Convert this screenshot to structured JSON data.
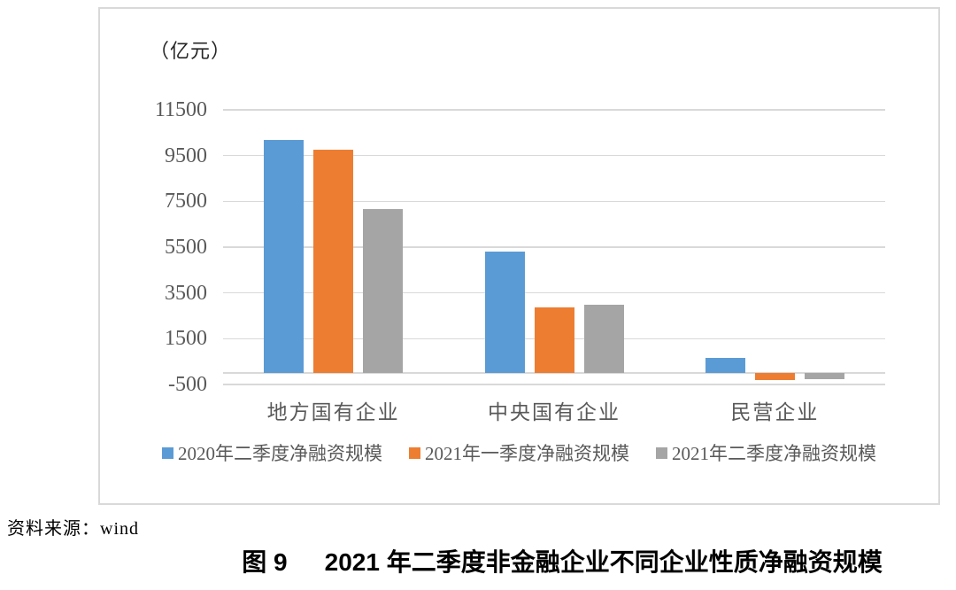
{
  "page": {
    "source_note": "资料来源：wind",
    "caption_label": "图 9",
    "caption_title": "2021 年二季度非金融企业不同企业性质净融资规模"
  },
  "chart_data": {
    "type": "bar",
    "unit_label": "（亿元）",
    "categories": [
      "地方国有企业",
      "中央国有企业",
      "民营企业"
    ],
    "series": [
      {
        "name": "2020年二季度净融资规模",
        "color": "#5B9BD5",
        "values": [
          10200,
          5300,
          650
        ]
      },
      {
        "name": "2021年一季度净融资规模",
        "color": "#ED7D31",
        "values": [
          9750,
          2850,
          -300
        ]
      },
      {
        "name": "2021年二季度净融资规模",
        "color": "#A5A5A5",
        "values": [
          7150,
          3000,
          -250
        ]
      }
    ],
    "ylim": [
      -500,
      11500
    ],
    "ytick_interval": 2000,
    "yticks": [
      11500,
      9500,
      7500,
      5500,
      3500,
      1500,
      -500
    ],
    "grid": true,
    "legend_position": "bottom",
    "colors": {
      "gridline": "#D9D9D9",
      "frame_border": "#D9D9D9",
      "axis_text": "#595959"
    }
  }
}
